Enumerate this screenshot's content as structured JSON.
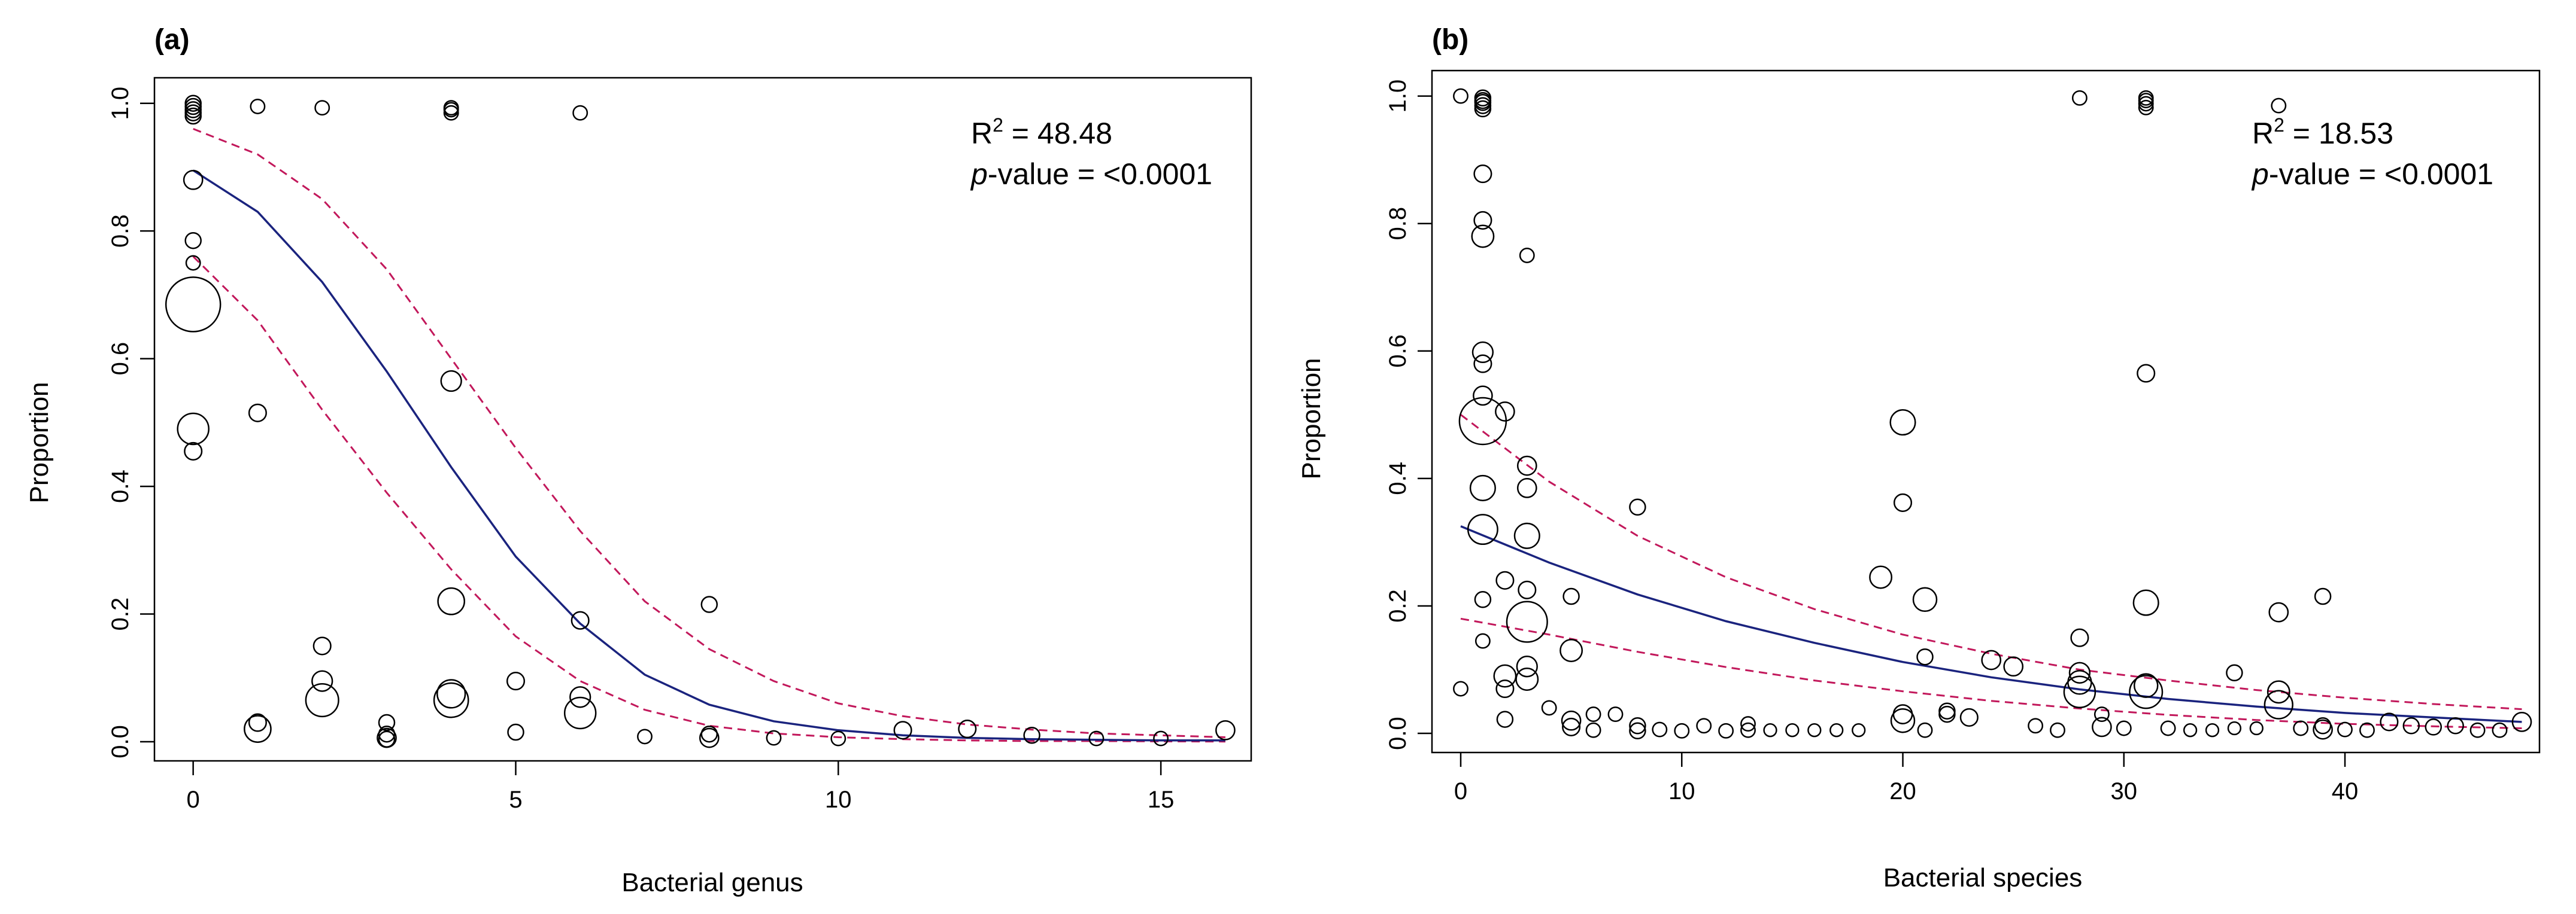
{
  "colors": {
    "fit": "#1a237e",
    "ci": "#c2185b",
    "points": "#000000",
    "frame": "#000000"
  },
  "chart_data": [
    {
      "type": "scatter",
      "panel_label": "(a)",
      "xlabel": "Bacterial genus",
      "ylabel": "Proportion",
      "xlim": [
        -0.6,
        16.4
      ],
      "ylim": [
        -0.03,
        1.04
      ],
      "xticks": [
        0,
        5,
        10,
        15
      ],
      "yticks": [
        0.0,
        0.2,
        0.4,
        0.6,
        0.8,
        1.0
      ],
      "xtick_labels": [
        "0",
        "5",
        "10",
        "15"
      ],
      "ytick_labels": [
        "0.0",
        "0.2",
        "0.4",
        "0.6",
        "0.8",
        "1.0"
      ],
      "annotation": {
        "r2_label": "R",
        "r2_sup": "2",
        "r2_value": " = 48.48",
        "p_label": "p",
        "p_value": "-value = <0.0001"
      },
      "points": [
        {
          "x": 0,
          "y": 1.0,
          "r": 1
        },
        {
          "x": 0,
          "y": 0.995,
          "r": 1
        },
        {
          "x": 0,
          "y": 0.99,
          "r": 1
        },
        {
          "x": 0,
          "y": 0.985,
          "r": 1
        },
        {
          "x": 0,
          "y": 0.98,
          "r": 1
        },
        {
          "x": 0,
          "y": 0.88,
          "r": 1.2
        },
        {
          "x": 0,
          "y": 0.785,
          "r": 1
        },
        {
          "x": 0,
          "y": 0.75,
          "r": 0.9
        },
        {
          "x": 0,
          "y": 0.685,
          "r": 3.5
        },
        {
          "x": 0,
          "y": 0.49,
          "r": 2
        },
        {
          "x": 0,
          "y": 0.455,
          "r": 1.1
        },
        {
          "x": 1,
          "y": 0.995,
          "r": 0.9
        },
        {
          "x": 1,
          "y": 0.515,
          "r": 1.1
        },
        {
          "x": 1,
          "y": 0.03,
          "r": 1.1
        },
        {
          "x": 1,
          "y": 0.02,
          "r": 1.7
        },
        {
          "x": 2,
          "y": 0.993,
          "r": 0.9
        },
        {
          "x": 2,
          "y": 0.15,
          "r": 1.1
        },
        {
          "x": 2,
          "y": 0.095,
          "r": 1.3
        },
        {
          "x": 2,
          "y": 0.065,
          "r": 2.1
        },
        {
          "x": 3,
          "y": 0.03,
          "r": 1
        },
        {
          "x": 3,
          "y": 0.012,
          "r": 1
        },
        {
          "x": 3,
          "y": 0.006,
          "r": 1.2
        },
        {
          "x": 3,
          "y": 0.004,
          "r": 1
        },
        {
          "x": 4,
          "y": 0.993,
          "r": 0.9
        },
        {
          "x": 4,
          "y": 0.99,
          "r": 0.9
        },
        {
          "x": 4,
          "y": 0.985,
          "r": 0.9
        },
        {
          "x": 4,
          "y": 0.565,
          "r": 1.3
        },
        {
          "x": 4,
          "y": 0.22,
          "r": 1.7
        },
        {
          "x": 4,
          "y": 0.075,
          "r": 1.8
        },
        {
          "x": 4,
          "y": 0.065,
          "r": 2.2
        },
        {
          "x": 5,
          "y": 0.095,
          "r": 1.1
        },
        {
          "x": 5,
          "y": 0.015,
          "r": 1
        },
        {
          "x": 6,
          "y": 0.985,
          "r": 0.9
        },
        {
          "x": 6,
          "y": 0.19,
          "r": 1.1
        },
        {
          "x": 6,
          "y": 0.07,
          "r": 1.3
        },
        {
          "x": 6,
          "y": 0.045,
          "r": 2
        },
        {
          "x": 7,
          "y": 0.008,
          "r": 0.9
        },
        {
          "x": 8,
          "y": 0.215,
          "r": 1
        },
        {
          "x": 8,
          "y": 0.012,
          "r": 1
        },
        {
          "x": 8,
          "y": 0.006,
          "r": 1.2
        },
        {
          "x": 9,
          "y": 0.006,
          "r": 0.9
        },
        {
          "x": 10,
          "y": 0.005,
          "r": 0.9
        },
        {
          "x": 11,
          "y": 0.018,
          "r": 1.1
        },
        {
          "x": 12,
          "y": 0.02,
          "r": 1.1
        },
        {
          "x": 13,
          "y": 0.01,
          "r": 1
        },
        {
          "x": 14,
          "y": 0.005,
          "r": 0.9
        },
        {
          "x": 15,
          "y": 0.005,
          "r": 0.9
        },
        {
          "x": 16,
          "y": 0.018,
          "r": 1.2
        }
      ],
      "series": [
        {
          "name": "fit",
          "x": [
            0,
            1,
            2,
            3,
            4,
            5,
            6,
            7,
            8,
            9,
            10,
            11,
            12,
            13,
            14,
            15,
            16
          ],
          "y": [
            0.895,
            0.83,
            0.72,
            0.58,
            0.43,
            0.29,
            0.185,
            0.105,
            0.058,
            0.032,
            0.018,
            0.01,
            0.006,
            0.004,
            0.003,
            0.002,
            0.002
          ]
        },
        {
          "name": "ci_upper",
          "x": [
            0,
            1,
            2,
            3,
            4,
            5,
            6,
            7,
            8,
            9,
            10,
            11,
            12,
            13,
            14,
            15,
            16
          ],
          "y": [
            0.96,
            0.92,
            0.85,
            0.74,
            0.6,
            0.46,
            0.33,
            0.22,
            0.145,
            0.095,
            0.06,
            0.04,
            0.027,
            0.019,
            0.013,
            0.01,
            0.007
          ]
        },
        {
          "name": "ci_lower",
          "x": [
            0,
            1,
            2,
            3,
            4,
            5,
            6,
            7,
            8,
            9,
            10,
            11,
            12,
            13,
            14,
            15,
            16
          ],
          "y": [
            0.76,
            0.66,
            0.52,
            0.39,
            0.27,
            0.165,
            0.095,
            0.05,
            0.025,
            0.013,
            0.007,
            0.004,
            0.002,
            0.001,
            0.001,
            0.0005,
            0.0003
          ]
        }
      ]
    },
    {
      "type": "scatter",
      "panel_label": "(b)",
      "xlabel": "Bacterial species",
      "ylabel": "Proportion",
      "xlim": [
        -1.3,
        48.8
      ],
      "ylim": [
        -0.03,
        1.04
      ],
      "xticks": [
        0,
        10,
        20,
        30,
        40
      ],
      "yticks": [
        0.0,
        0.2,
        0.4,
        0.6,
        0.8,
        1.0
      ],
      "xtick_labels": [
        "0",
        "10",
        "20",
        "30",
        "40"
      ],
      "ytick_labels": [
        "0.0",
        "0.2",
        "0.4",
        "0.6",
        "0.8",
        "1.0"
      ],
      "annotation": {
        "r2_label": "R",
        "r2_sup": "2",
        "r2_value": " = 18.53",
        "p_label": "p",
        "p_value": "-value = <0.0001"
      },
      "points": [
        {
          "x": 0,
          "y": 1.0,
          "r": 0.9
        },
        {
          "x": 0,
          "y": 0.07,
          "r": 0.9
        },
        {
          "x": 1,
          "y": 0.997,
          "r": 1
        },
        {
          "x": 1,
          "y": 0.993,
          "r": 1
        },
        {
          "x": 1,
          "y": 0.99,
          "r": 1
        },
        {
          "x": 1,
          "y": 0.985,
          "r": 1
        },
        {
          "x": 1,
          "y": 0.98,
          "r": 1
        },
        {
          "x": 1,
          "y": 0.878,
          "r": 1.1
        },
        {
          "x": 1,
          "y": 0.805,
          "r": 1.1
        },
        {
          "x": 1,
          "y": 0.78,
          "r": 1.4
        },
        {
          "x": 1,
          "y": 0.598,
          "r": 1.3
        },
        {
          "x": 1,
          "y": 0.58,
          "r": 1.1
        },
        {
          "x": 1,
          "y": 0.53,
          "r": 1.2
        },
        {
          "x": 1,
          "y": 0.49,
          "r": 3
        },
        {
          "x": 1,
          "y": 0.385,
          "r": 1.6
        },
        {
          "x": 1,
          "y": 0.32,
          "r": 1.9
        },
        {
          "x": 1,
          "y": 0.21,
          "r": 1
        },
        {
          "x": 1,
          "y": 0.145,
          "r": 0.9
        },
        {
          "x": 2,
          "y": 0.505,
          "r": 1.2
        },
        {
          "x": 2,
          "y": 0.24,
          "r": 1.1
        },
        {
          "x": 2,
          "y": 0.09,
          "r": 1.4
        },
        {
          "x": 2,
          "y": 0.07,
          "r": 1.1
        },
        {
          "x": 2,
          "y": 0.022,
          "r": 1
        },
        {
          "x": 3,
          "y": 0.75,
          "r": 0.9
        },
        {
          "x": 3,
          "y": 0.42,
          "r": 1.2
        },
        {
          "x": 3,
          "y": 0.385,
          "r": 1.2
        },
        {
          "x": 3,
          "y": 0.31,
          "r": 1.6
        },
        {
          "x": 3,
          "y": 0.225,
          "r": 1.1
        },
        {
          "x": 3,
          "y": 0.175,
          "r": 2.6
        },
        {
          "x": 3,
          "y": 0.105,
          "r": 1.3
        },
        {
          "x": 3,
          "y": 0.085,
          "r": 1.4
        },
        {
          "x": 4,
          "y": 0.04,
          "r": 0.9
        },
        {
          "x": 5,
          "y": 0.215,
          "r": 1
        },
        {
          "x": 5,
          "y": 0.13,
          "r": 1.4
        },
        {
          "x": 5,
          "y": 0.02,
          "r": 1.2
        },
        {
          "x": 5,
          "y": 0.01,
          "r": 1.1
        },
        {
          "x": 6,
          "y": 0.03,
          "r": 0.9
        },
        {
          "x": 6,
          "y": 0.005,
          "r": 0.9
        },
        {
          "x": 7,
          "y": 0.03,
          "r": 0.9
        },
        {
          "x": 8,
          "y": 0.355,
          "r": 1
        },
        {
          "x": 8,
          "y": 0.012,
          "r": 1
        },
        {
          "x": 8,
          "y": 0.004,
          "r": 1
        },
        {
          "x": 9,
          "y": 0.006,
          "r": 0.9
        },
        {
          "x": 10,
          "y": 0.004,
          "r": 0.9
        },
        {
          "x": 11,
          "y": 0.012,
          "r": 0.9
        },
        {
          "x": 12,
          "y": 0.004,
          "r": 0.9
        },
        {
          "x": 13,
          "y": 0.015,
          "r": 0.9
        },
        {
          "x": 13,
          "y": 0.005,
          "r": 0.9
        },
        {
          "x": 14,
          "y": 0.005,
          "r": 0.8
        },
        {
          "x": 15,
          "y": 0.005,
          "r": 0.8
        },
        {
          "x": 16,
          "y": 0.005,
          "r": 0.8
        },
        {
          "x": 17,
          "y": 0.005,
          "r": 0.8
        },
        {
          "x": 18,
          "y": 0.005,
          "r": 0.8
        },
        {
          "x": 19,
          "y": 0.245,
          "r": 1.4
        },
        {
          "x": 20,
          "y": 0.488,
          "r": 1.6
        },
        {
          "x": 20,
          "y": 0.362,
          "r": 1.1
        },
        {
          "x": 20,
          "y": 0.03,
          "r": 1.2
        },
        {
          "x": 20,
          "y": 0.02,
          "r": 1.5
        },
        {
          "x": 21,
          "y": 0.21,
          "r": 1.5
        },
        {
          "x": 21,
          "y": 0.12,
          "r": 1
        },
        {
          "x": 21,
          "y": 0.005,
          "r": 0.9
        },
        {
          "x": 22,
          "y": 0.035,
          "r": 1
        },
        {
          "x": 22,
          "y": 0.03,
          "r": 1
        },
        {
          "x": 23,
          "y": 0.025,
          "r": 1.1
        },
        {
          "x": 24,
          "y": 0.115,
          "r": 1.2
        },
        {
          "x": 25,
          "y": 0.105,
          "r": 1.2
        },
        {
          "x": 26,
          "y": 0.012,
          "r": 0.9
        },
        {
          "x": 27,
          "y": 0.005,
          "r": 0.9
        },
        {
          "x": 28,
          "y": 0.997,
          "r": 0.9
        },
        {
          "x": 28,
          "y": 0.15,
          "r": 1.1
        },
        {
          "x": 28,
          "y": 0.095,
          "r": 1.3
        },
        {
          "x": 28,
          "y": 0.08,
          "r": 1.5
        },
        {
          "x": 28,
          "y": 0.065,
          "r": 2
        },
        {
          "x": 29,
          "y": 0.03,
          "r": 0.9
        },
        {
          "x": 29,
          "y": 0.01,
          "r": 1.2
        },
        {
          "x": 30,
          "y": 0.008,
          "r": 0.9
        },
        {
          "x": 31,
          "y": 0.997,
          "r": 0.9
        },
        {
          "x": 31,
          "y": 0.993,
          "r": 0.9
        },
        {
          "x": 31,
          "y": 0.988,
          "r": 0.9
        },
        {
          "x": 31,
          "y": 0.982,
          "r": 0.9
        },
        {
          "x": 31,
          "y": 0.565,
          "r": 1.1
        },
        {
          "x": 31,
          "y": 0.205,
          "r": 1.6
        },
        {
          "x": 31,
          "y": 0.075,
          "r": 1.5
        },
        {
          "x": 31,
          "y": 0.065,
          "r": 2.1
        },
        {
          "x": 32,
          "y": 0.008,
          "r": 0.9
        },
        {
          "x": 33,
          "y": 0.005,
          "r": 0.8
        },
        {
          "x": 34,
          "y": 0.005,
          "r": 0.8
        },
        {
          "x": 35,
          "y": 0.095,
          "r": 1
        },
        {
          "x": 35,
          "y": 0.008,
          "r": 0.8
        },
        {
          "x": 36,
          "y": 0.008,
          "r": 0.8
        },
        {
          "x": 37,
          "y": 0.985,
          "r": 0.9
        },
        {
          "x": 37,
          "y": 0.19,
          "r": 1.2
        },
        {
          "x": 37,
          "y": 0.065,
          "r": 1.4
        },
        {
          "x": 37,
          "y": 0.045,
          "r": 1.8
        },
        {
          "x": 38,
          "y": 0.008,
          "r": 0.9
        },
        {
          "x": 39,
          "y": 0.215,
          "r": 1
        },
        {
          "x": 39,
          "y": 0.012,
          "r": 1
        },
        {
          "x": 39,
          "y": 0.006,
          "r": 1.2
        },
        {
          "x": 40,
          "y": 0.006,
          "r": 0.9
        },
        {
          "x": 41,
          "y": 0.005,
          "r": 0.9
        },
        {
          "x": 42,
          "y": 0.018,
          "r": 1.1
        },
        {
          "x": 43,
          "y": 0.012,
          "r": 1
        },
        {
          "x": 44,
          "y": 0.01,
          "r": 1
        },
        {
          "x": 45,
          "y": 0.012,
          "r": 1
        },
        {
          "x": 46,
          "y": 0.005,
          "r": 0.9
        },
        {
          "x": 47,
          "y": 0.005,
          "r": 0.9
        },
        {
          "x": 48,
          "y": 0.018,
          "r": 1.2
        }
      ],
      "series": [
        {
          "name": "fit",
          "x": [
            0,
            4,
            8,
            12,
            16,
            20,
            24,
            28,
            32,
            36,
            40,
            44,
            48
          ],
          "y": [
            0.325,
            0.268,
            0.218,
            0.176,
            0.142,
            0.112,
            0.088,
            0.069,
            0.054,
            0.042,
            0.032,
            0.025,
            0.018
          ]
        },
        {
          "name": "ci_upper",
          "x": [
            0,
            4,
            8,
            12,
            16,
            20,
            24,
            28,
            32,
            36,
            40,
            44,
            48
          ],
          "y": [
            0.5,
            0.395,
            0.31,
            0.245,
            0.195,
            0.155,
            0.125,
            0.1,
            0.083,
            0.068,
            0.056,
            0.046,
            0.038
          ]
        },
        {
          "name": "ci_lower",
          "x": [
            0,
            4,
            8,
            12,
            16,
            20,
            24,
            28,
            32,
            36,
            40,
            44,
            48
          ],
          "y": [
            0.18,
            0.155,
            0.128,
            0.104,
            0.083,
            0.066,
            0.051,
            0.039,
            0.029,
            0.021,
            0.015,
            0.011,
            0.008
          ]
        }
      ]
    }
  ]
}
